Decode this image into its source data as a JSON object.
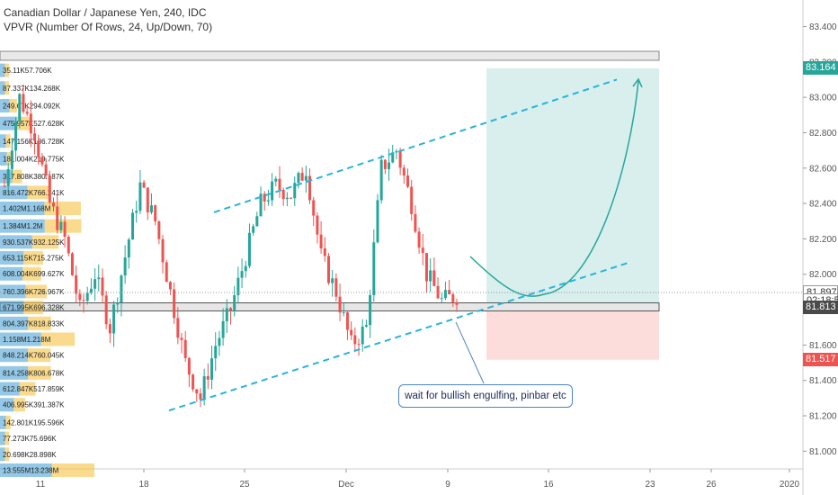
{
  "legend": {
    "title": "Canadian Dollar / Japanese Yen, 240, IDC",
    "indicator": "VPVR (Number Of Rows, 24, Up/Down, 70)"
  },
  "annotation": {
    "callout_text": "wait for bullish engulfing, pinbar etc"
  },
  "price_tags": [
    {
      "label": "83.164",
      "price": 83.164,
      "color": "#26a69a"
    },
    {
      "label": "81.897",
      "price": 81.897,
      "color": "#ffffff",
      "text_color": "#333333",
      "border": "#999999"
    },
    {
      "label": "02:18:50",
      "price": 81.855,
      "color": "#ffffff",
      "text_color": "#333333",
      "border": "#999999"
    },
    {
      "label": "81.813",
      "price": 81.813,
      "color": "#4a4a4a"
    },
    {
      "label": "81.517",
      "price": 81.517,
      "color": "#ef5350"
    }
  ],
  "chart_data": {
    "type": "candlestick",
    "title": "Canadian Dollar / Japanese Yen, 240, IDC",
    "ylim": [
      80.9,
      83.55
    ],
    "y_ticks": [
      "81.000",
      "81.200",
      "81.400",
      "81.600",
      "81.800",
      "82.000",
      "82.200",
      "82.400",
      "82.600",
      "82.800",
      "83.000",
      "83.200",
      "83.400"
    ],
    "x_ticks": [
      "11",
      "18",
      "25",
      "Dec",
      "9",
      "16",
      "23",
      "26",
      "2020"
    ],
    "grid": false,
    "colors": {
      "up": "#26a69a",
      "down": "#ef5350"
    },
    "volume_profile_rows": [
      {
        "label": "35.11K57.706K",
        "price": 83.15,
        "up": 35.11,
        "down": 57.706
      },
      {
        "label": "87.337K134.268K",
        "price": 83.05,
        "up": 87.337,
        "down": 134.268
      },
      {
        "label": "249.67K294.092K",
        "price": 82.95,
        "up": 249.67,
        "down": 294.092
      },
      {
        "label": "475.957K527.628K",
        "price": 82.85,
        "up": 475.957,
        "down": 527.628
      },
      {
        "label": "147.156K186.728K",
        "price": 82.75,
        "up": 147.156,
        "down": 186.728
      },
      {
        "label": "181.004K219.775K",
        "price": 82.65,
        "up": 181.004,
        "down": 219.775
      },
      {
        "label": "317.808K380.187K",
        "price": 82.55,
        "up": 317.808,
        "down": 380.187
      },
      {
        "label": "816.472K766.241K",
        "price": 82.46,
        "up": 816.472,
        "down": 766.241
      },
      {
        "label": "1.402M1.168M",
        "price": 82.37,
        "up": 1402,
        "down": 1168
      },
      {
        "label": "1.384M1.2M",
        "price": 82.27,
        "up": 1384,
        "down": 1200
      },
      {
        "label": "930.537K932.125K",
        "price": 82.18,
        "up": 930.537,
        "down": 932.125
      },
      {
        "label": "653.115K715.275K",
        "price": 82.09,
        "up": 653.115,
        "down": 715.275
      },
      {
        "label": "608.004K699.627K",
        "price": 82.0,
        "up": 608.004,
        "down": 699.627
      },
      {
        "label": "760.396K726.967K",
        "price": 81.9,
        "up": 760.396,
        "down": 726.967
      },
      {
        "label": "671.995K696.328K",
        "price": 81.81,
        "up": 671.995,
        "down": 696.328
      },
      {
        "label": "804.397K818.833K",
        "price": 81.72,
        "up": 804.397,
        "down": 818.833
      },
      {
        "label": "1.158M1.218M",
        "price": 81.63,
        "up": 1158,
        "down": 1218
      },
      {
        "label": "848.214K760.045K",
        "price": 81.54,
        "up": 848.214,
        "down": 760.045
      },
      {
        "label": "814.258K806.678K",
        "price": 81.44,
        "up": 814.258,
        "down": 806.678
      },
      {
        "label": "612.847K517.859K",
        "price": 81.35,
        "up": 612.847,
        "down": 517.859
      },
      {
        "label": "406.995K391.387K",
        "price": 81.26,
        "up": 406.995,
        "down": 391.387
      },
      {
        "label": "142.801K195.596K",
        "price": 81.16,
        "up": 142.801,
        "down": 195.596
      },
      {
        "label": "77.273K75.696K",
        "price": 81.07,
        "up": 77.273,
        "down": 75.696
      },
      {
        "label": "20.698K28.898K",
        "price": 80.98,
        "up": 20.698,
        "down": 28.898
      },
      {
        "label": "13.555M13.238M",
        "price": 80.89,
        "up": 13555,
        "down": 13238
      }
    ],
    "price_path": [
      [
        0,
        82.5
      ],
      [
        4,
        83.0
      ],
      [
        8,
        82.8
      ],
      [
        12,
        82.4
      ],
      [
        16,
        82.2
      ],
      [
        20,
        81.8
      ],
      [
        24,
        82.0
      ],
      [
        28,
        81.7
      ],
      [
        32,
        82.1
      ],
      [
        36,
        82.5
      ],
      [
        40,
        82.3
      ],
      [
        44,
        81.9
      ],
      [
        48,
        81.5
      ],
      [
        52,
        81.3
      ],
      [
        56,
        81.6
      ],
      [
        60,
        81.8
      ],
      [
        64,
        82.1
      ],
      [
        68,
        82.4
      ],
      [
        72,
        82.5
      ],
      [
        76,
        82.45
      ],
      [
        80,
        82.6
      ],
      [
        84,
        82.1
      ],
      [
        88,
        81.9
      ],
      [
        92,
        81.6
      ],
      [
        96,
        81.7
      ],
      [
        100,
        82.6
      ],
      [
        104,
        82.7
      ],
      [
        108,
        82.4
      ],
      [
        112,
        82.0
      ],
      [
        116,
        81.85
      ],
      [
        120,
        81.88
      ]
    ],
    "trade_setup": {
      "target_zone": [
        81.82,
        83.164
      ],
      "stop_zone": [
        81.517,
        81.82
      ],
      "entry": 81.813
    },
    "channel": {
      "upper": [
        [
          0,
          82.35
        ],
        [
          1,
          83.1
        ]
      ],
      "lower": [
        [
          0,
          81.23
        ],
        [
          1,
          82.07
        ]
      ]
    },
    "reference_lines": [
      81.897
    ]
  }
}
